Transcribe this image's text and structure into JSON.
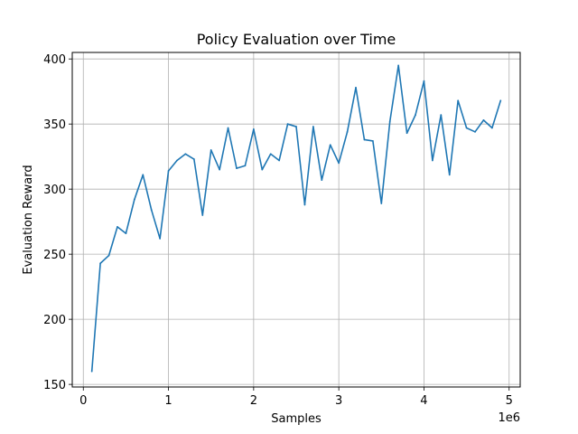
{
  "chart_data": {
    "type": "line",
    "title": "Policy Evaluation over Time",
    "xlabel": "Samples",
    "ylabel": "Evaluation Reward",
    "x_offset_label": "1e6",
    "xlim": [
      -130000,
      5130000
    ],
    "ylim": [
      148,
      405
    ],
    "x_ticks": [
      0,
      1000000,
      2000000,
      3000000,
      4000000,
      5000000
    ],
    "x_tick_labels": [
      "0",
      "1",
      "2",
      "3",
      "4",
      "5"
    ],
    "y_ticks": [
      150,
      200,
      250,
      300,
      350,
      400
    ],
    "y_tick_labels": [
      "150",
      "200",
      "250",
      "300",
      "350",
      "400"
    ],
    "grid": true,
    "line_color": "#1f77b4",
    "series": [
      {
        "x": [
          100000,
          200000,
          300000,
          400000,
          500000,
          600000,
          700000,
          800000,
          900000,
          1000000,
          1100000,
          1200000,
          1300000,
          1400000,
          1500000,
          1600000,
          1700000,
          1800000,
          1900000,
          2000000,
          2100000,
          2200000,
          2300000,
          2400000,
          2500000,
          2600000,
          2700000,
          2800000,
          2900000,
          3000000,
          3100000,
          3200000,
          3300000,
          3400000,
          3500000,
          3600000,
          3700000,
          3800000,
          3900000,
          4000000,
          4100000,
          4200000,
          4300000,
          4400000,
          4500000,
          4600000,
          4700000,
          4800000,
          4900000
        ],
        "y": [
          160,
          243,
          249,
          271,
          266,
          292,
          311,
          284,
          262,
          314,
          322,
          327,
          323,
          280,
          330,
          315,
          347,
          316,
          318,
          346,
          315,
          327,
          322,
          350,
          348,
          288,
          348,
          307,
          334,
          320,
          344,
          378,
          338,
          337,
          289,
          352,
          395,
          343,
          357,
          383,
          322,
          357,
          311,
          368,
          347,
          344,
          353,
          347,
          368
        ]
      }
    ]
  }
}
